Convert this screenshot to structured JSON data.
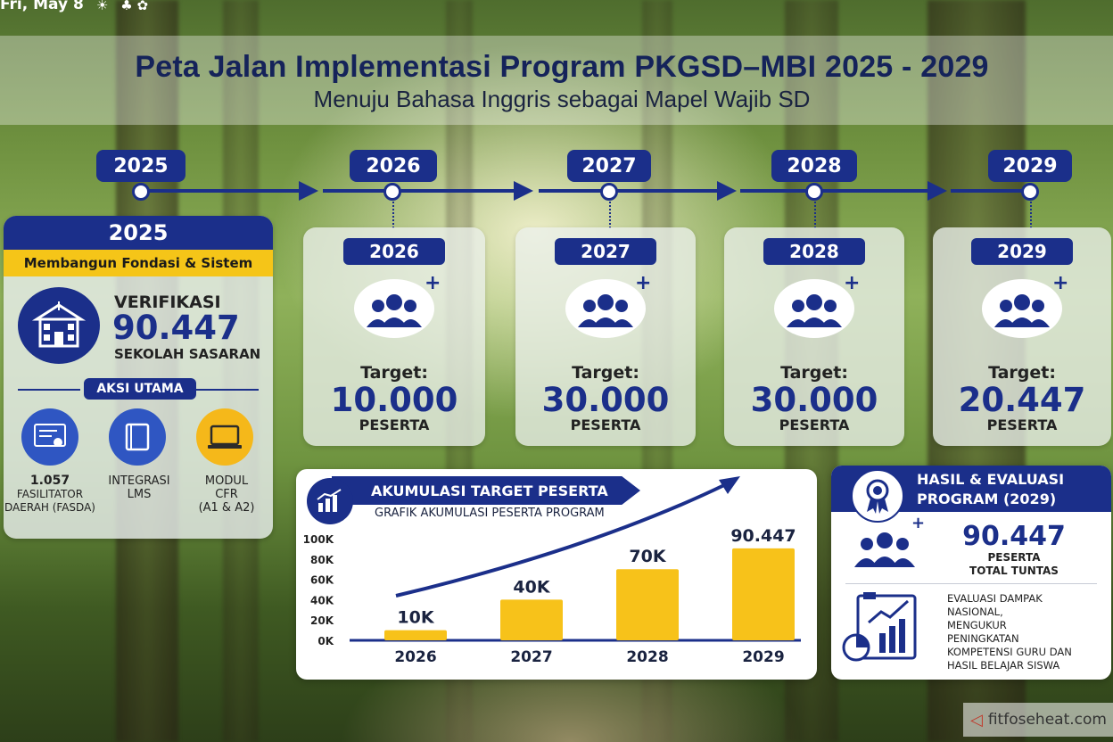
{
  "status": {
    "date": "Fri, May 8"
  },
  "header": {
    "title": "Peta Jalan Implementasi Program PKGSD–MBI 2025 - 2029",
    "subtitle": "Menuju Bahasa Inggris sebagai Mapel Wajib SD"
  },
  "timeline": [
    "2025",
    "2026",
    "2027",
    "2028",
    "2029"
  ],
  "first_card": {
    "year": "2025",
    "theme": "Membangun Fondasi & Sistem",
    "verif_label": "VERIFIKASI",
    "verif_value": "90.447",
    "verif_unit": "SEKOLAH SASARAN",
    "actions_title": "AKSI UTAMA",
    "actions": [
      {
        "line1": "1.057",
        "line2": "FASILITATOR",
        "line3": "DAERAH (FASDA)"
      },
      {
        "line1": "INTEGRASI",
        "line2": "LMS",
        "line3": ""
      },
      {
        "line1": "MODUL",
        "line2": "CFR",
        "line3": "(A1 & A2)"
      }
    ]
  },
  "year_cards": [
    {
      "year": "2026",
      "target_label": "Target:",
      "value": "10.000",
      "unit": "PESERTA"
    },
    {
      "year": "2027",
      "target_label": "Target:",
      "value": "30.000",
      "unit": "PESERTA"
    },
    {
      "year": "2028",
      "target_label": "Target:",
      "value": "30.000",
      "unit": "PESERTA"
    },
    {
      "year": "2029",
      "target_label": "Target:",
      "value": "20.447",
      "unit": "PESERTA"
    }
  ],
  "chart_panel": {
    "header": "AKUMULASI TARGET PESERTA",
    "subheader": "GRAFIK AKUMULASI PESERTA PROGRAM"
  },
  "chart_data": {
    "type": "bar",
    "categories": [
      "2026",
      "2027",
      "2028",
      "2029"
    ],
    "values": [
      10000,
      40000,
      70000,
      90447
    ],
    "value_labels": [
      "10K",
      "40K",
      "70K",
      "90.447"
    ],
    "yticks": [
      "100K",
      "80K",
      "60K",
      "40K",
      "20K",
      "0K"
    ],
    "ylim": [
      0,
      100000
    ],
    "bar_color": "#f7c21a",
    "trend_color": "#1b2f8a"
  },
  "results_panel": {
    "title_line1": "HASIL & EVALUASI",
    "title_line2": "PROGRAM (2029)",
    "value": "90.447",
    "unit_line1": "PESERTA",
    "unit_line2": "TOTAL TUNTAS",
    "eval_lines": [
      "EVALUASI DAMPAK",
      "NASIONAL,",
      "MENGUKUR",
      "PENINGKATAN",
      "KOMPETENSI GURU DAN",
      "HASIL BELAJAR SISWA"
    ]
  },
  "watermark": {
    "text": "fitfoseheat.com"
  },
  "colors": {
    "navy": "#1b2f8a",
    "yellow": "#f5c518"
  }
}
